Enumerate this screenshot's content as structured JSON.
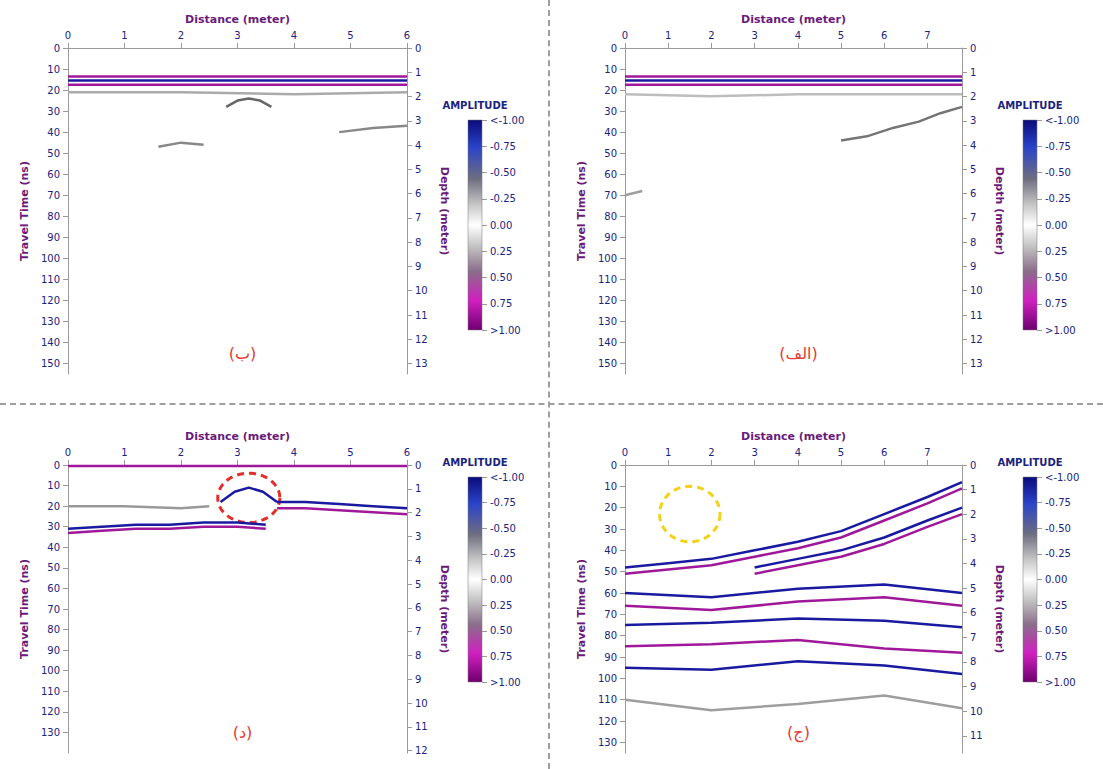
{
  "chart_data": [
    {
      "type": "line",
      "title": "(الف)",
      "xlabel": "Distance (meter)",
      "ylabel": "Travel Time (ns)",
      "y2label": "Depth (meter)",
      "xlim": [
        0,
        7.8
      ],
      "xticks": [
        0,
        1,
        2,
        3,
        4,
        5,
        6,
        7
      ],
      "ylim": [
        0,
        155
      ],
      "yticks": [
        0,
        10,
        20,
        30,
        40,
        50,
        60,
        70,
        80,
        90,
        100,
        110,
        120,
        130,
        140,
        150
      ],
      "y2lim": [
        0,
        13.43
      ],
      "y2ticks": [
        0,
        1,
        2,
        3,
        4,
        5,
        6,
        7,
        8,
        9,
        10,
        11,
        12,
        13
      ],
      "colorbar": {
        "title": "AMPLITUDE",
        "range": [
          -1,
          1
        ],
        "ticks": [
          {
            "value": -1,
            "label": "<-1.00"
          },
          -0.75,
          {
            "value": -0.5,
            "label": "-0.50"
          },
          -0.25,
          {
            "value": 0,
            "label": "0.00"
          },
          0.25,
          {
            "value": 0.5,
            "label": "0.50"
          },
          0.75,
          {
            "value": 1,
            "label": ">1.00"
          }
        ]
      },
      "series": [
        {
          "color": "#a0189a",
          "x": [
            0,
            7.8
          ],
          "values": [
            13.5,
            13.5
          ]
        },
        {
          "color": "#1a1aa0",
          "x": [
            0,
            7.8
          ],
          "values": [
            15.5,
            15.5
          ]
        },
        {
          "color": "#a0189a",
          "x": [
            0,
            7.8
          ],
          "values": [
            17.5,
            17.5
          ]
        },
        {
          "color": "#bdbdbd",
          "x": [
            0,
            2,
            4,
            6,
            7.8
          ],
          "values": [
            22,
            23,
            22,
            22,
            22
          ]
        },
        {
          "color": "#757575",
          "x": [
            5.0,
            5.6,
            6.2,
            6.8,
            7.3,
            7.8
          ],
          "values": [
            44,
            42,
            38,
            35,
            31,
            28
          ]
        },
        {
          "color": "#9e9e9e",
          "x": [
            0,
            0.4
          ],
          "values": [
            70,
            68
          ]
        }
      ]
    },
    {
      "type": "line",
      "title": "(ب)",
      "xlabel": "Distance (meter)",
      "ylabel": "Travel Time (ns)",
      "y2label": "Depth (meter)",
      "xlim": [
        0,
        6
      ],
      "xticks": [
        0,
        1,
        2,
        3,
        4,
        5,
        6
      ],
      "ylim": [
        0,
        155
      ],
      "yticks": [
        0,
        10,
        20,
        30,
        40,
        50,
        60,
        70,
        80,
        90,
        100,
        110,
        120,
        130,
        140,
        150
      ],
      "y2lim": [
        0,
        13.43
      ],
      "y2ticks": [
        0,
        1,
        2,
        3,
        4,
        5,
        6,
        7,
        8,
        9,
        10,
        11,
        12,
        13
      ],
      "colorbar": {
        "title": "AMPLITUDE",
        "range": [
          -1,
          1
        ],
        "ticks": [
          {
            "value": -1,
            "label": "<-1.00"
          },
          -0.75,
          {
            "value": -0.5,
            "label": "-0.50"
          },
          -0.25,
          {
            "value": 0,
            "label": "0.00"
          },
          0.25,
          {
            "value": 0.5,
            "label": "0.50"
          },
          0.75,
          {
            "value": 1,
            "label": ">1.00"
          }
        ]
      },
      "series": [
        {
          "color": "#a0189a",
          "x": [
            0,
            6
          ],
          "values": [
            13.5,
            13.5
          ]
        },
        {
          "color": "#1a1aa0",
          "x": [
            0,
            6
          ],
          "values": [
            15.5,
            15.5
          ]
        },
        {
          "color": "#a0189a",
          "x": [
            0,
            6
          ],
          "values": [
            17.5,
            17.5
          ]
        },
        {
          "color": "#aaaaaa",
          "x": [
            0,
            2,
            4,
            6
          ],
          "values": [
            21,
            21,
            22,
            21
          ]
        },
        {
          "color": "#666666",
          "x": [
            2.8,
            3.0,
            3.2,
            3.4,
            3.6
          ],
          "values": [
            28,
            25,
            24,
            25,
            28
          ]
        },
        {
          "color": "#888888",
          "x": [
            1.6,
            2.0,
            2.4
          ],
          "values": [
            47,
            45,
            46
          ]
        },
        {
          "color": "#888888",
          "x": [
            4.8,
            5.4,
            6.0
          ],
          "values": [
            40,
            38,
            37
          ]
        }
      ]
    },
    {
      "type": "line",
      "title": "(ج)",
      "xlabel": "Distance (meter)",
      "ylabel": "Travel Time (ns)",
      "y2label": "Depth (meter)",
      "xlim": [
        0,
        7.8
      ],
      "xticks": [
        0,
        1,
        2,
        3,
        4,
        5,
        6,
        7
      ],
      "ylim": [
        0,
        135
      ],
      "yticks": [
        0,
        10,
        20,
        30,
        40,
        50,
        60,
        70,
        80,
        90,
        100,
        110,
        120,
        130
      ],
      "y2lim": [
        0,
        11.7
      ],
      "y2ticks": [
        0,
        1,
        2,
        3,
        4,
        5,
        6,
        7,
        8,
        9,
        10,
        11
      ],
      "colorbar": {
        "title": "AMPLITUDE",
        "range": [
          -1,
          1
        ],
        "ticks": [
          {
            "value": -1,
            "label": "<-1.00"
          },
          -0.75,
          {
            "value": -0.5,
            "label": "-0.50"
          },
          -0.25,
          {
            "value": 0,
            "label": "0.00"
          },
          0.25,
          {
            "value": 0.5,
            "label": "0.50"
          },
          0.75,
          {
            "value": 1,
            "label": ">1.00"
          }
        ]
      },
      "series": [
        {
          "color": "#1a1aa0",
          "x": [
            0,
            1,
            2,
            3,
            4,
            5,
            6,
            7,
            7.8
          ],
          "values": [
            48,
            46,
            44,
            40,
            36,
            31,
            23,
            15,
            8
          ]
        },
        {
          "color": "#a0189a",
          "x": [
            0,
            1,
            2,
            3,
            4,
            5,
            6,
            7,
            7.8
          ],
          "values": [
            51,
            49,
            47,
            43,
            39,
            34,
            26,
            18,
            11
          ]
        },
        {
          "color": "#1a1aa0",
          "x": [
            3,
            4,
            5,
            6,
            7,
            7.8
          ],
          "values": [
            48,
            44,
            40,
            34,
            26,
            20
          ]
        },
        {
          "color": "#a0189a",
          "x": [
            3,
            4,
            5,
            6,
            7,
            7.8
          ],
          "values": [
            51,
            47,
            43,
            37,
            29,
            23
          ]
        },
        {
          "color": "#1a1aa0",
          "x": [
            0,
            2,
            4,
            6,
            7.8
          ],
          "values": [
            60,
            62,
            58,
            56,
            60
          ]
        },
        {
          "color": "#a0189a",
          "x": [
            0,
            2,
            4,
            6,
            7.8
          ],
          "values": [
            66,
            68,
            64,
            62,
            66
          ]
        },
        {
          "color": "#1a1aa0",
          "x": [
            0,
            2,
            4,
            6,
            7.8
          ],
          "values": [
            75,
            74,
            72,
            73,
            76
          ]
        },
        {
          "color": "#a0189a",
          "x": [
            0,
            2,
            4,
            6,
            7.8
          ],
          "values": [
            85,
            84,
            82,
            86,
            88
          ]
        },
        {
          "color": "#1a1aa0",
          "x": [
            0,
            2,
            4,
            6,
            7.8
          ],
          "values": [
            95,
            96,
            92,
            94,
            98
          ]
        },
        {
          "color": "#9e9e9e",
          "x": [
            0,
            2,
            4,
            6,
            7.8
          ],
          "values": [
            110,
            115,
            112,
            108,
            114
          ]
        }
      ],
      "highlights": [
        {
          "x": 1.5,
          "y": 23,
          "rx": 0.7,
          "ry": 13,
          "color": "#f2d21b",
          "line_style": "dashed"
        }
      ]
    },
    {
      "type": "line",
      "title": "(د)",
      "xlabel": "Distance (meter)",
      "ylabel": "Travel Time (ns)",
      "y2label": "Depth (meter)",
      "xlim": [
        0,
        6
      ],
      "xticks": [
        0,
        1,
        2,
        3,
        4,
        5,
        6
      ],
      "ylim": [
        0,
        140
      ],
      "yticks": [
        0,
        10,
        20,
        30,
        40,
        50,
        60,
        70,
        80,
        90,
        100,
        110,
        120,
        130
      ],
      "y2lim": [
        0,
        12.1
      ],
      "y2ticks": [
        0,
        1,
        2,
        3,
        4,
        5,
        6,
        7,
        8,
        9,
        10,
        11,
        12
      ],
      "colorbar": {
        "title": "AMPLITUDE",
        "range": [
          -1,
          1
        ],
        "ticks": [
          {
            "value": -1,
            "label": "<-1.00"
          },
          -0.75,
          {
            "value": -0.5,
            "label": "-0.50"
          },
          -0.25,
          {
            "value": 0,
            "label": "0.00"
          },
          0.25,
          {
            "value": 0.5,
            "label": "0.50"
          },
          0.75,
          {
            "value": 1,
            "label": ">1.00"
          }
        ]
      },
      "series": [
        {
          "color": "#a0189a",
          "x": [
            0,
            6
          ],
          "values": [
            0.5,
            0.5
          ]
        },
        {
          "color": "#999999",
          "x": [
            0,
            1,
            2,
            2.5
          ],
          "values": [
            20,
            20,
            21,
            20
          ]
        },
        {
          "color": "#1a1aa0",
          "x": [
            0,
            0.6,
            1.2,
            1.8,
            2.4,
            3.0,
            3.5
          ],
          "values": [
            31,
            30,
            29,
            29,
            28,
            28,
            29
          ]
        },
        {
          "color": "#a0189a",
          "x": [
            0,
            0.6,
            1.2,
            1.8,
            2.4,
            3.0,
            3.5
          ],
          "values": [
            33,
            32,
            31,
            31,
            30,
            30,
            31
          ]
        },
        {
          "color": "#1a1aa0",
          "x": [
            3.7,
            4.2,
            4.8,
            5.4,
            6.0
          ],
          "values": [
            18,
            18,
            19,
            20,
            21
          ]
        },
        {
          "color": "#a0189a",
          "x": [
            3.7,
            4.2,
            4.8,
            5.4,
            6.0
          ],
          "values": [
            21,
            21,
            22,
            23,
            24
          ]
        },
        {
          "color": "#1a1aa0",
          "x": [
            2.7,
            2.95,
            3.2,
            3.45,
            3.7
          ],
          "values": [
            18,
            13,
            11,
            13,
            18
          ]
        }
      ],
      "highlights": [
        {
          "x": 3.2,
          "y": 16,
          "rx": 0.55,
          "ry": 12,
          "color": "#e0302a",
          "line_style": "dashed"
        }
      ]
    }
  ]
}
